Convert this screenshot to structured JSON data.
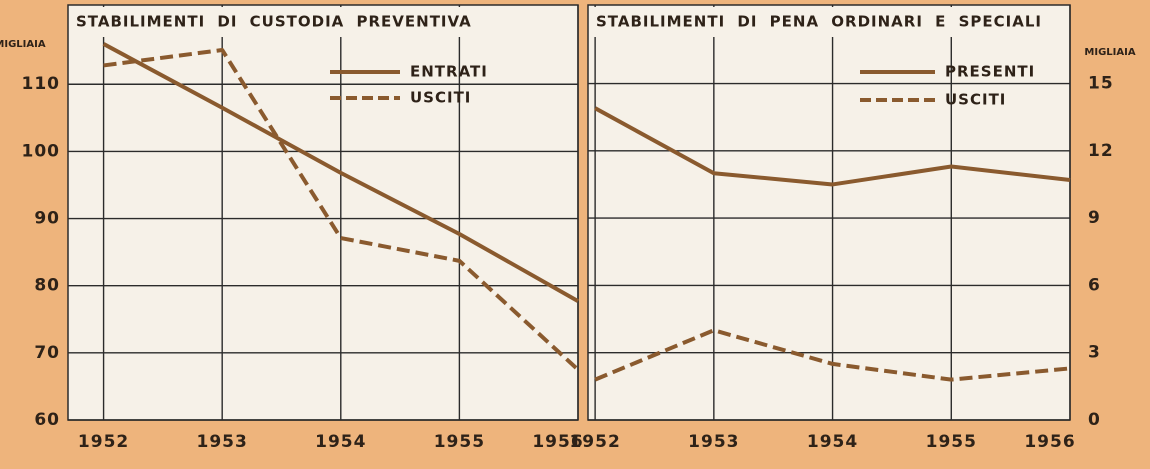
{
  "chart_data": [
    {
      "type": "line",
      "title": "STABILIMENTI DI CUSTODIA PREVENTIVA",
      "ylabel": "MIGLIAIA",
      "x": [
        1952,
        1953,
        1954,
        1955,
        1956
      ],
      "series": [
        {
          "name": "ENTRATI",
          "color": "#8a5a2e",
          "linestyle": "solid",
          "values": [
            116,
            106.5,
            96.8,
            87.7,
            77.7
          ]
        },
        {
          "name": "USCITI",
          "color": "#8a5a2e",
          "linestyle": "dashed",
          "values": [
            112.8,
            115.1,
            87.1,
            83.7,
            67.5
          ]
        }
      ],
      "xlim": [
        1951.7,
        1956
      ],
      "xticks": [
        1952,
        1953,
        1954,
        1955,
        1956
      ],
      "ylim": [
        60,
        121.8
      ],
      "yticks": [
        60,
        70,
        80,
        90,
        100,
        110
      ],
      "grid": true,
      "legend": "upper right",
      "yaxis_side": "left"
    },
    {
      "type": "line",
      "title": "STABILIMENTI DI PENA ORDINARI E SPECIALI",
      "ylabel": "MIGLIAIA",
      "x": [
        1952,
        1953,
        1954,
        1955,
        1956
      ],
      "series": [
        {
          "name": "PRESENTI",
          "color": "#8a5a2e",
          "linestyle": "solid",
          "values": [
            13.9,
            11.0,
            10.5,
            11.3,
            10.7
          ]
        },
        {
          "name": "USCITI",
          "color": "#8a5a2e",
          "linestyle": "dashed",
          "values": [
            1.8,
            4.0,
            2.5,
            1.8,
            2.3
          ]
        }
      ],
      "xlim": [
        1951.94,
        1956
      ],
      "xticks": [
        1952,
        1953,
        1954,
        1955,
        1956
      ],
      "ylim": [
        0,
        18.5
      ],
      "yticks": [
        0,
        3,
        6,
        9,
        12,
        15
      ],
      "grid": true,
      "legend": "upper right",
      "yaxis_side": "right"
    }
  ]
}
